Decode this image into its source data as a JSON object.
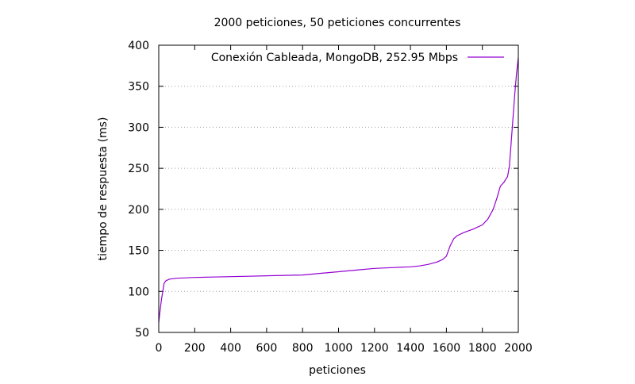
{
  "chart_data": {
    "type": "line",
    "title": "2000 peticiones, 50 peticiones concurrentes",
    "xlabel": "peticiones",
    "ylabel": "tiempo de respuesta (ms)",
    "xlim": [
      0,
      2000
    ],
    "ylim": [
      50,
      400
    ],
    "xticks": [
      0,
      200,
      400,
      600,
      800,
      1000,
      1200,
      1400,
      1600,
      1800,
      2000
    ],
    "yticks": [
      50,
      100,
      150,
      200,
      250,
      300,
      350,
      400
    ],
    "grid": "horizontal dotted",
    "legend_position": "top-right",
    "series": [
      {
        "name": "Conexión Cableada, MongoDB, 252.95 Mbps",
        "color": "#9400d3",
        "x": [
          0,
          5,
          15,
          30,
          40,
          60,
          100,
          200,
          300,
          400,
          500,
          600,
          700,
          800,
          900,
          1000,
          1100,
          1200,
          1300,
          1400,
          1450,
          1500,
          1550,
          1580,
          1600,
          1620,
          1640,
          1660,
          1700,
          1750,
          1800,
          1830,
          1860,
          1880,
          1900,
          1920,
          1940,
          1950,
          1960,
          1970,
          1980,
          1990,
          2000
        ],
        "y": [
          62,
          72,
          90,
          110,
          113,
          115,
          116,
          117,
          117.5,
          118,
          118.5,
          119,
          119.5,
          120,
          122,
          124,
          126,
          128,
          129,
          130,
          131,
          133,
          136,
          139,
          143,
          155,
          164,
          168,
          172,
          176,
          181,
          188,
          200,
          213,
          228,
          233,
          240,
          252,
          280,
          310,
          340,
          365,
          385
        ]
      }
    ]
  }
}
